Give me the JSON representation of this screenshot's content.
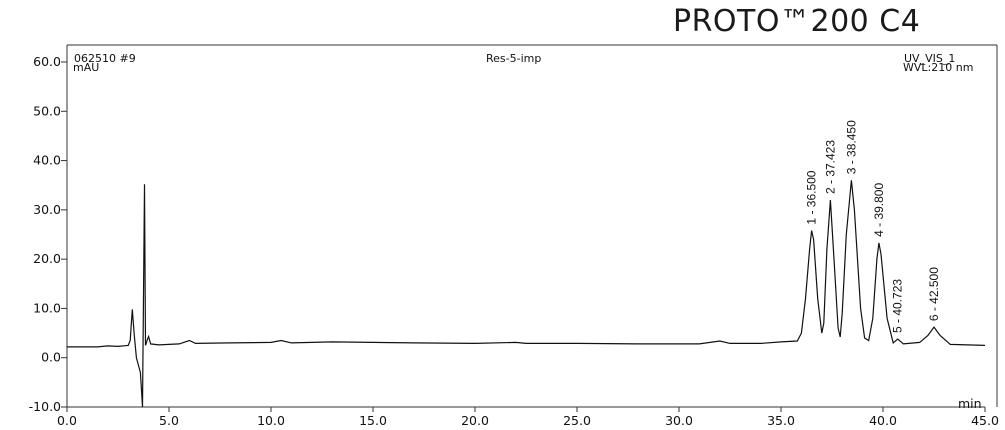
{
  "brand": "PROTO™200 C4",
  "header": {
    "sample": "062510 #9",
    "method": "Res-5-imp",
    "detector": "UV_VIS_1",
    "wavelength": "WVL:210 nm"
  },
  "chart_data": {
    "type": "line",
    "title": "Res-5-imp",
    "xlabel": "min",
    "ylabel": "mAU",
    "xlim": [
      0.0,
      45.0
    ],
    "ylim": [
      -10.0,
      60.0
    ],
    "xticks": [
      "0.0",
      "5.0",
      "10.0",
      "15.0",
      "20.0",
      "25.0",
      "30.0",
      "35.0",
      "40.0",
      "45.0"
    ],
    "yticks": [
      "60.0",
      "50.0",
      "40.0",
      "30.0",
      "20.0",
      "10.0",
      "0.0",
      "-10.0"
    ],
    "grid": false,
    "series": [
      {
        "values": [
          [
            0.0,
            2.2
          ],
          [
            1.5,
            2.2
          ],
          [
            2.0,
            2.4
          ],
          [
            2.5,
            2.3
          ],
          [
            3.0,
            2.5
          ],
          [
            3.1,
            3.5
          ],
          [
            3.2,
            9.8
          ],
          [
            3.3,
            4.5
          ],
          [
            3.4,
            0.0
          ],
          [
            3.5,
            -1.5
          ],
          [
            3.6,
            -3.0
          ],
          [
            3.7,
            -10.0
          ],
          [
            3.8,
            35.2
          ],
          [
            3.85,
            2.5
          ],
          [
            3.95,
            3.8
          ],
          [
            4.0,
            4.3
          ],
          [
            4.1,
            2.8
          ],
          [
            4.5,
            2.6
          ],
          [
            5.5,
            2.8
          ],
          [
            6.0,
            3.5
          ],
          [
            6.3,
            2.9
          ],
          [
            8.0,
            3.0
          ],
          [
            10.0,
            3.1
          ],
          [
            10.5,
            3.5
          ],
          [
            11.0,
            3.0
          ],
          [
            13.0,
            3.2
          ],
          [
            15.0,
            3.1
          ],
          [
            17.0,
            3.0
          ],
          [
            20.0,
            2.9
          ],
          [
            22.0,
            3.1
          ],
          [
            22.5,
            2.9
          ],
          [
            25.0,
            2.9
          ],
          [
            28.0,
            2.8
          ],
          [
            31.0,
            2.8
          ],
          [
            32.0,
            3.4
          ],
          [
            32.5,
            2.9
          ],
          [
            34.0,
            2.9
          ],
          [
            35.0,
            3.2
          ],
          [
            35.8,
            3.4
          ],
          [
            36.0,
            5.0
          ],
          [
            36.2,
            12.0
          ],
          [
            36.4,
            22.0
          ],
          [
            36.5,
            25.8
          ],
          [
            36.6,
            24.0
          ],
          [
            36.8,
            12.0
          ],
          [
            37.0,
            5.0
          ],
          [
            37.1,
            7.0
          ],
          [
            37.25,
            22.0
          ],
          [
            37.423,
            32.0
          ],
          [
            37.6,
            20.0
          ],
          [
            37.8,
            6.0
          ],
          [
            37.9,
            4.2
          ],
          [
            38.0,
            9.0
          ],
          [
            38.2,
            25.0
          ],
          [
            38.45,
            36.0
          ],
          [
            38.6,
            30.0
          ],
          [
            38.9,
            10.0
          ],
          [
            39.1,
            4.0
          ],
          [
            39.3,
            3.5
          ],
          [
            39.5,
            8.0
          ],
          [
            39.7,
            20.0
          ],
          [
            39.8,
            23.3
          ],
          [
            39.9,
            21.0
          ],
          [
            40.2,
            8.0
          ],
          [
            40.5,
            3.0
          ],
          [
            40.723,
            3.8
          ],
          [
            41.0,
            2.8
          ],
          [
            41.8,
            3.1
          ],
          [
            42.2,
            4.5
          ],
          [
            42.5,
            6.2
          ],
          [
            42.8,
            4.5
          ],
          [
            43.3,
            2.7
          ],
          [
            45.0,
            2.5
          ]
        ]
      }
    ],
    "peaks": [
      {
        "label": "1 - 36.500",
        "x": 36.5,
        "y": 25.8
      },
      {
        "label": "2 - 37.423",
        "x": 37.423,
        "y": 32.0
      },
      {
        "label": "3 - 38.450",
        "x": 38.45,
        "y": 36.0
      },
      {
        "label": "4 - 39.800",
        "x": 39.8,
        "y": 23.3
      },
      {
        "label": "5 - 40.723",
        "x": 40.723,
        "y": 3.8
      },
      {
        "label": "6 - 42.500",
        "x": 42.5,
        "y": 6.2
      }
    ],
    "colors": {
      "trace": "#111111",
      "frame": "#333333"
    }
  }
}
